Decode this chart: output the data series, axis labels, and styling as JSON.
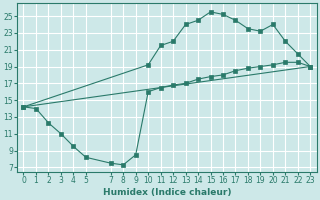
{
  "xlabel": "Humidex (Indice chaleur)",
  "bg_color": "#cde8e8",
  "grid_color": "#ffffff",
  "line_color": "#2a7a6a",
  "xlim": [
    -0.5,
    23.5
  ],
  "ylim": [
    6.5,
    26.5
  ],
  "xticks": [
    0,
    1,
    2,
    3,
    4,
    5,
    7,
    8,
    9,
    10,
    11,
    12,
    13,
    14,
    15,
    16,
    17,
    18,
    19,
    20,
    21,
    22,
    23
  ],
  "yticks": [
    7,
    9,
    11,
    13,
    15,
    17,
    19,
    21,
    23,
    25
  ],
  "curve_bottom_x": [
    0,
    1,
    2,
    3,
    4,
    5,
    7,
    8,
    9,
    10,
    11,
    12,
    13,
    14,
    15,
    16,
    17,
    18,
    19,
    20,
    21,
    22,
    23
  ],
  "curve_bottom_y": [
    14.2,
    14.0,
    12.3,
    11.0,
    9.5,
    8.2,
    7.5,
    7.3,
    8.5,
    16.0,
    16.5,
    16.8,
    17.0,
    17.5,
    17.8,
    18.0,
    18.5,
    18.8,
    19.0,
    19.2,
    19.5,
    19.5,
    19.0
  ],
  "curve_top_x": [
    0,
    10,
    11,
    12,
    13,
    14,
    15,
    16,
    17,
    18,
    19,
    20,
    21,
    22,
    23
  ],
  "curve_top_y": [
    14.2,
    19.2,
    21.5,
    22.0,
    24.0,
    24.5,
    25.5,
    25.2,
    24.5,
    23.5,
    23.2,
    24.0,
    22.0,
    20.5,
    19.0
  ],
  "line_x": [
    0,
    23
  ],
  "line_y": [
    14.2,
    19.0
  ]
}
